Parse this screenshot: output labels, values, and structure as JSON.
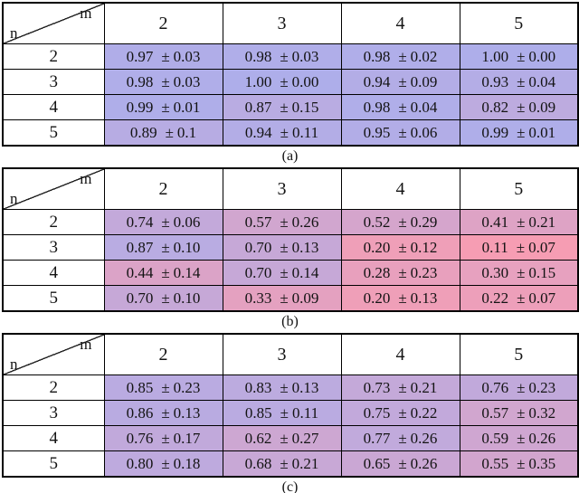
{
  "figure": {
    "colormap": {
      "low_value_color": "#ff9bac",
      "high_value_color": "#aeaeea"
    },
    "corner": {
      "col_var": "m",
      "row_var": "n"
    },
    "col_headers": [
      "2",
      "3",
      "4",
      "5"
    ],
    "plus_minus": "±",
    "tables": [
      {
        "caption": "(a)",
        "rows": [
          {
            "label": "2",
            "cells": [
              {
                "mean": "0.97",
                "std": "0.03"
              },
              {
                "mean": "0.98",
                "std": "0.03"
              },
              {
                "mean": "0.98",
                "std": "0.02"
              },
              {
                "mean": "1.00",
                "std": "0.00"
              }
            ]
          },
          {
            "label": "3",
            "cells": [
              {
                "mean": "0.98",
                "std": "0.03"
              },
              {
                "mean": "1.00",
                "std": "0.00"
              },
              {
                "mean": "0.94",
                "std": "0.09"
              },
              {
                "mean": "0.93",
                "std": "0.04"
              }
            ]
          },
          {
            "label": "4",
            "cells": [
              {
                "mean": "0.99",
                "std": "0.01"
              },
              {
                "mean": "0.87",
                "std": "0.15"
              },
              {
                "mean": "0.98",
                "std": "0.04"
              },
              {
                "mean": "0.82",
                "std": "0.09"
              }
            ]
          },
          {
            "label": "5",
            "cells": [
              {
                "mean": "0.89",
                "std": "0.1"
              },
              {
                "mean": "0.94",
                "std": "0.11"
              },
              {
                "mean": "0.95",
                "std": "0.06"
              },
              {
                "mean": "0.99",
                "std": "0.01"
              }
            ]
          }
        ]
      },
      {
        "caption": "(b)",
        "rows": [
          {
            "label": "2",
            "cells": [
              {
                "mean": "0.74",
                "std": "0.06"
              },
              {
                "mean": "0.57",
                "std": "0.26"
              },
              {
                "mean": "0.52",
                "std": "0.29"
              },
              {
                "mean": "0.41",
                "std": "0.21"
              }
            ]
          },
          {
            "label": "3",
            "cells": [
              {
                "mean": "0.87",
                "std": "0.10"
              },
              {
                "mean": "0.70",
                "std": "0.13"
              },
              {
                "mean": "0.20",
                "std": "0.12"
              },
              {
                "mean": "0.11",
                "std": "0.07"
              }
            ]
          },
          {
            "label": "4",
            "cells": [
              {
                "mean": "0.44",
                "std": "0.14"
              },
              {
                "mean": "0.70",
                "std": "0.14"
              },
              {
                "mean": "0.28",
                "std": "0.23"
              },
              {
                "mean": "0.30",
                "std": "0.15"
              }
            ]
          },
          {
            "label": "5",
            "cells": [
              {
                "mean": "0.70",
                "std": "0.10"
              },
              {
                "mean": "0.33",
                "std": "0.09"
              },
              {
                "mean": "0.20",
                "std": "0.13"
              },
              {
                "mean": "0.22",
                "std": "0.07"
              }
            ]
          }
        ]
      },
      {
        "caption": "(c)",
        "rows": [
          {
            "label": "2",
            "cells": [
              {
                "mean": "0.85",
                "std": "0.23"
              },
              {
                "mean": "0.83",
                "std": "0.13"
              },
              {
                "mean": "0.73",
                "std": "0.21"
              },
              {
                "mean": "0.76",
                "std": "0.23"
              }
            ]
          },
          {
            "label": "3",
            "cells": [
              {
                "mean": "0.86",
                "std": "0.13"
              },
              {
                "mean": "0.85",
                "std": "0.11"
              },
              {
                "mean": "0.75",
                "std": "0.22"
              },
              {
                "mean": "0.57",
                "std": "0.32"
              }
            ]
          },
          {
            "label": "4",
            "cells": [
              {
                "mean": "0.76",
                "std": "0.17"
              },
              {
                "mean": "0.62",
                "std": "0.27"
              },
              {
                "mean": "0.77",
                "std": "0.26"
              },
              {
                "mean": "0.59",
                "std": "0.26"
              }
            ]
          },
          {
            "label": "5",
            "cells": [
              {
                "mean": "0.80",
                "std": "0.18"
              },
              {
                "mean": "0.68",
                "std": "0.21"
              },
              {
                "mean": "0.65",
                "std": "0.26"
              },
              {
                "mean": "0.55",
                "std": "0.35"
              }
            ]
          }
        ]
      }
    ]
  }
}
